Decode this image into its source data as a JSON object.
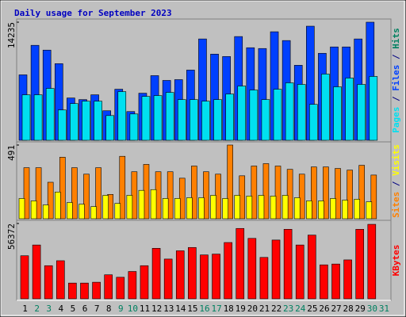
{
  "title": "Daily usage for September 2023",
  "separator": " / ",
  "categories": [
    "1",
    "2",
    "3",
    "4",
    "5",
    "6",
    "7",
    "8",
    "9",
    "10",
    "11",
    "12",
    "13",
    "14",
    "15",
    "16",
    "17",
    "18",
    "19",
    "20",
    "21",
    "22",
    "23",
    "24",
    "25",
    "26",
    "27",
    "28",
    "29",
    "30",
    "31"
  ],
  "category_colors": [
    "#000000",
    "#008060",
    "#008060",
    "#000000",
    "#000000",
    "#000000",
    "#000000",
    "#000000",
    "#008060",
    "#008060",
    "#000000",
    "#000000",
    "#000000",
    "#000000",
    "#000000",
    "#008060",
    "#008060",
    "#000000",
    "#000000",
    "#000000",
    "#000000",
    "#000000",
    "#008060",
    "#008060",
    "#000000",
    "#000000",
    "#000000",
    "#000000",
    "#000000",
    "#008060",
    "#008060"
  ],
  "chart_data": [
    {
      "type": "bar",
      "ylim": [
        0,
        14235
      ],
      "yticks": [
        14235
      ],
      "series": [
        {
          "name": "Pages",
          "color": "#00e0f0",
          "values": [
            5482,
            5482,
            6252,
            3655,
            4424,
            4713,
            4713,
            2981,
            5867,
            3174,
            5290,
            5386,
            5771,
            4905,
            4905,
            4713,
            4905,
            5578,
            6540,
            6059,
            4905,
            6156,
            6925,
            6733,
            4328,
            7983,
            6444,
            7502,
            6733,
            7695,
            null
          ]
        },
        {
          "name": "Files",
          "color": "#0040ff",
          "values": [
            7887,
            11446,
            10869,
            9234,
            5098,
            4905,
            5482,
            3559,
            6156,
            3463,
            5675,
            7791,
            7214,
            7310,
            8464,
            12215,
            10388,
            10099,
            12504,
            11157,
            11061,
            13081,
            12023,
            9041,
            13754,
            10484,
            11253,
            11253,
            12215,
            14235,
            null
          ]
        },
        {
          "name": "Hits",
          "color": "#008060",
          "values": [
            null,
            null,
            null,
            null,
            null,
            null,
            null,
            null,
            null,
            null,
            null,
            null,
            null,
            null,
            null,
            null,
            null,
            null,
            null,
            null,
            null,
            null,
            null,
            null,
            null,
            null,
            null,
            null,
            null,
            null,
            null
          ]
        }
      ]
    },
    {
      "type": "bar",
      "ylim": [
        0,
        491
      ],
      "yticks": [
        491
      ],
      "series": [
        {
          "name": "Sites",
          "color": "#ff8000",
          "values": [
            340,
            340,
            243,
            410,
            340,
            297,
            340,
            162,
            416,
            313,
            362,
            313,
            313,
            270,
            351,
            313,
            297,
            491,
            286,
            351,
            367,
            351,
            329,
            297,
            345,
            345,
            335,
            324,
            356,
            291,
            null
          ]
        },
        {
          "name": "Visits",
          "color": "#ffff00",
          "values": [
            135,
            119,
            92,
            178,
            108,
            97,
            81,
            156,
            102,
            156,
            189,
            194,
            135,
            135,
            140,
            140,
            156,
            135,
            156,
            151,
            156,
            151,
            156,
            140,
            119,
            119,
            135,
            124,
            130,
            113,
            null
          ]
        }
      ]
    },
    {
      "type": "bar",
      "ylim": [
        0,
        56372
      ],
      "yticks": [
        56372
      ],
      "series": [
        {
          "name": "KBytes",
          "color": "#ff0000",
          "values": [
            32213,
            40268,
            24779,
            28496,
            11770,
            11770,
            12390,
            17965,
            16107,
            20443,
            24779,
            37789,
            29736,
            35931,
            38409,
            32833,
            33453,
            42126,
            52657,
            45223,
            30975,
            43984,
            52038,
            40268,
            47701,
            25399,
            26019,
            29116,
            52038,
            55753,
            null
          ]
        }
      ]
    }
  ]
}
